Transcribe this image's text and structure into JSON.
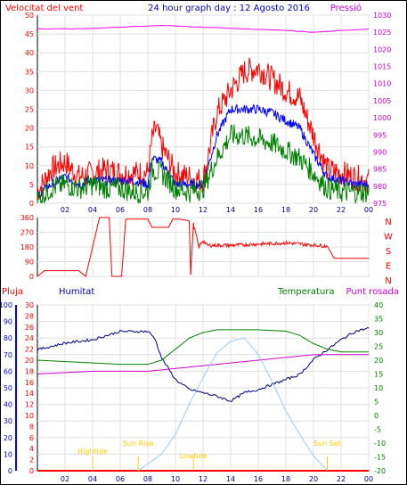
{
  "chart_data": [
    {
      "type": "line",
      "title": "24 hour graph day : 12 Agosto 2016",
      "left_axis_label": "Velocitat del vent",
      "right_axis_label": "Pressió",
      "left_range": [
        0,
        50
      ],
      "left_ticks": [
        "0",
        "5",
        "10",
        "15",
        "20",
        "25",
        "30",
        "35",
        "40",
        "45",
        "50"
      ],
      "right_range": [
        975,
        1030
      ],
      "right_ticks": [
        "975",
        "980",
        "985",
        "990",
        "995",
        "1000",
        "1005",
        "1010",
        "1015",
        "1020",
        "1025",
        "1030"
      ],
      "x_ticks": [
        "02",
        "04",
        "06",
        "08",
        "10",
        "12",
        "14",
        "16",
        "18",
        "20",
        "22",
        "00"
      ],
      "x_range_hours": [
        0,
        24
      ],
      "grid": true,
      "series": [
        {
          "axis": "left",
          "color": "#ff0000",
          "hours": [
            0,
            1,
            2,
            3,
            4,
            5,
            6,
            7,
            8,
            8.3,
            8.6,
            9,
            10,
            11,
            12,
            13,
            14,
            15,
            16,
            17,
            18,
            19,
            20,
            21,
            22,
            23,
            24
          ],
          "values": [
            3,
            9,
            11,
            7,
            8,
            9,
            8,
            8,
            8,
            17,
            20,
            15,
            8,
            7,
            6,
            24,
            30,
            35,
            36,
            33,
            30,
            28,
            18,
            9,
            8,
            7,
            6
          ]
        },
        {
          "axis": "left",
          "color": "#0000ff",
          "hours": [
            0,
            1,
            2,
            3,
            4,
            5,
            6,
            7,
            8,
            8.3,
            9,
            10,
            11,
            12,
            13,
            14,
            15,
            16,
            17,
            18,
            19,
            20,
            21,
            22,
            23,
            24
          ],
          "values": [
            2,
            5,
            7,
            5,
            6,
            6,
            6,
            6,
            5,
            12,
            11,
            5,
            5,
            5,
            18,
            25,
            25,
            25,
            24,
            22,
            20,
            13,
            7,
            6,
            5,
            5
          ]
        },
        {
          "axis": "left",
          "color": "#008000",
          "hours": [
            0,
            1,
            2,
            3,
            4,
            5,
            6,
            7,
            8,
            8.3,
            9,
            10,
            11,
            12,
            13,
            14,
            15,
            16,
            17,
            18,
            19,
            20,
            21,
            22,
            23,
            24
          ],
          "values": [
            1,
            4,
            5,
            4,
            5,
            4,
            4,
            3,
            3,
            9,
            8,
            4,
            3,
            4,
            12,
            18,
            18,
            17,
            16,
            14,
            12,
            8,
            4,
            3,
            3,
            3
          ]
        },
        {
          "axis": "right",
          "color": "#ff00ff",
          "hours": [
            0,
            3,
            6,
            9,
            12,
            15,
            18,
            20,
            22,
            24
          ],
          "values": [
            1026,
            1026,
            1026.5,
            1027,
            1026.5,
            1026,
            1025.5,
            1025,
            1025.5,
            1026
          ]
        }
      ]
    },
    {
      "type": "line",
      "right_labels": [
        "N",
        "W",
        "S",
        "E",
        "N"
      ],
      "left_ticks": [
        "0",
        "90",
        "180",
        "270",
        "360"
      ],
      "range": [
        0,
        360
      ],
      "x_range_hours": [
        0,
        24
      ],
      "grid": true,
      "series": [
        {
          "name": "direction",
          "color": "#ff0000",
          "hours": [
            0,
            0.5,
            3,
            3.5,
            4.5,
            5.2,
            5.4,
            6.1,
            6.4,
            8,
            8.3,
            9.5,
            9.8,
            10,
            10.3,
            11,
            11.1,
            11.3,
            11.7,
            12,
            12.3,
            14,
            18,
            21,
            21.5,
            23,
            24
          ],
          "values": [
            0,
            35,
            35,
            0,
            360,
            360,
            0,
            0,
            350,
            350,
            300,
            300,
            350,
            350,
            350,
            340,
            10,
            320,
            180,
            220,
            190,
            190,
            205,
            185,
            110,
            110,
            110
          ]
        }
      ]
    },
    {
      "type": "line",
      "left_labels": [
        "Pluja",
        "Humitat"
      ],
      "right_labels": [
        "Temperatura",
        "Punt rosada"
      ],
      "rain_ticks": [
        "0",
        "2",
        "4",
        "6",
        "8",
        "10",
        "12",
        "14",
        "16",
        "18",
        "20",
        "22",
        "24",
        "26",
        "28",
        "30"
      ],
      "humidity_ticks": [
        "0",
        "10",
        "20",
        "30",
        "40",
        "50",
        "60",
        "70",
        "80",
        "90",
        "100"
      ],
      "temperature_ticks": [
        "-20",
        "-15",
        "-10",
        "-5",
        "0",
        "5",
        "10",
        "15",
        "20",
        "25",
        "30",
        "35",
        "40"
      ],
      "x_range_hours": [
        0,
        24
      ],
      "grid": true,
      "events": [
        {
          "label": "Sun Rise",
          "hour": 7.3
        },
        {
          "label": "Lowtide",
          "hour": 11.3
        },
        {
          "label": "Hightide",
          "hour": 4.0
        },
        {
          "label": "Sun Set",
          "hour": 21.0
        }
      ],
      "series": [
        {
          "name": "humidity",
          "axis": "humidity",
          "color": "#000080",
          "hours": [
            0,
            2,
            4,
            6,
            8,
            8.5,
            9,
            10,
            11,
            12,
            13,
            14,
            15,
            16,
            17,
            18,
            19,
            20,
            21,
            22,
            23,
            24
          ],
          "values": [
            73,
            77,
            79,
            84,
            84,
            80,
            68,
            55,
            49,
            47,
            45,
            42,
            47,
            49,
            52,
            55,
            58,
            67,
            73,
            79,
            84,
            86
          ]
        },
        {
          "name": "temperature",
          "axis": "temperature",
          "color": "#008000",
          "hours": [
            0,
            2,
            4,
            6,
            8,
            9,
            10,
            11,
            12,
            13,
            14,
            16,
            18,
            19,
            20,
            21,
            22,
            24
          ],
          "values": [
            20,
            19.5,
            19,
            18.5,
            18.5,
            20,
            24,
            28,
            30,
            31,
            31,
            31,
            30.5,
            29,
            26,
            24,
            23,
            23
          ]
        },
        {
          "name": "dewpoint",
          "axis": "temperature",
          "color": "#cc00cc",
          "hours": [
            0,
            4,
            8,
            10,
            12,
            14,
            16,
            18,
            20,
            22,
            24
          ],
          "values": [
            15,
            16,
            16,
            17,
            18,
            19,
            20,
            21,
            22,
            22,
            22
          ]
        },
        {
          "name": "rain",
          "axis": "rain",
          "color": "#ff0000",
          "hours": [
            0,
            24
          ],
          "values": [
            0,
            0
          ]
        },
        {
          "name": "solar",
          "axis": "humidity",
          "color": "#99ccff",
          "hours": [
            7.3,
            9,
            10,
            11,
            12,
            13,
            14,
            15,
            16,
            17,
            18,
            19,
            20,
            21
          ],
          "values": [
            0,
            10,
            22,
            40,
            56,
            71,
            78,
            80,
            70,
            54,
            36,
            22,
            9,
            0
          ]
        }
      ]
    }
  ]
}
